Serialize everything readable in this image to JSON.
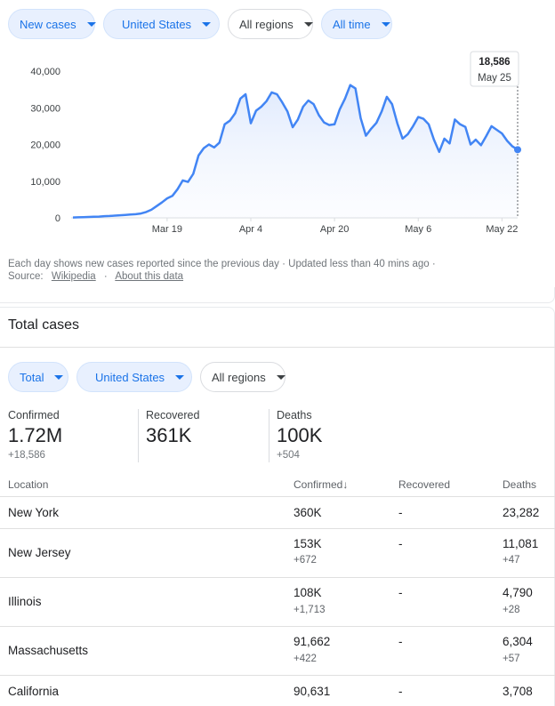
{
  "filters_top": {
    "metric": "New cases",
    "country": "United States",
    "regions": "All regions",
    "time": "All time"
  },
  "chart_data": {
    "type": "area",
    "y_ticks": [
      "40,000",
      "30,000",
      "20,000",
      "10,000",
      "0"
    ],
    "x_ticks": [
      "Mar 19",
      "Apr 4",
      "Apr 20",
      "May 6",
      "May 22"
    ],
    "ylim": [
      0,
      40000
    ],
    "start_date": "2020-03-01",
    "x_dates": [
      "Mar 1",
      "Mar 2",
      "Mar 3",
      "Mar 4",
      "Mar 5",
      "Mar 6",
      "Mar 7",
      "Mar 8",
      "Mar 9",
      "Mar 10",
      "Mar 11",
      "Mar 12",
      "Mar 13",
      "Mar 14",
      "Mar 15",
      "Mar 16",
      "Mar 17",
      "Mar 18",
      "Mar 19",
      "Mar 20",
      "Mar 21",
      "Mar 22",
      "Mar 23",
      "Mar 24",
      "Mar 25",
      "Mar 26",
      "Mar 27",
      "Mar 28",
      "Mar 29",
      "Mar 30",
      "Mar 31",
      "Apr 1",
      "Apr 2",
      "Apr 3",
      "Apr 4",
      "Apr 5",
      "Apr 6",
      "Apr 7",
      "Apr 8",
      "Apr 9",
      "Apr 10",
      "Apr 11",
      "Apr 12",
      "Apr 13",
      "Apr 14",
      "Apr 15",
      "Apr 16",
      "Apr 17",
      "Apr 18",
      "Apr 19",
      "Apr 20",
      "Apr 21",
      "Apr 22",
      "Apr 23",
      "Apr 24",
      "Apr 25",
      "Apr 26",
      "Apr 27",
      "Apr 28",
      "Apr 29",
      "Apr 30",
      "May 1",
      "May 2",
      "May 3",
      "May 4",
      "May 5",
      "May 6",
      "May 7",
      "May 8",
      "May 9",
      "May 10",
      "May 11",
      "May 12",
      "May 13",
      "May 14",
      "May 15",
      "May 16",
      "May 17",
      "May 18",
      "May 19",
      "May 20",
      "May 21",
      "May 22",
      "May 23",
      "May 24",
      "May 25"
    ],
    "values": [
      100,
      150,
      200,
      250,
      300,
      350,
      450,
      500,
      600,
      700,
      800,
      900,
      1000,
      1200,
      1600,
      2200,
      3200,
      4200,
      5300,
      6000,
      7800,
      10200,
      9800,
      12000,
      17000,
      19000,
      20000,
      19200,
      20500,
      25500,
      26500,
      28500,
      32500,
      33700,
      25800,
      29200,
      30300,
      31800,
      34200,
      33700,
      31500,
      29000,
      24700,
      26800,
      30300,
      32000,
      31000,
      28000,
      26000,
      25300,
      25500,
      29600,
      32500,
      36200,
      35300,
      27200,
      22400,
      24300,
      25900,
      29000,
      33000,
      31000,
      25800,
      21600,
      22800,
      25000,
      27500,
      27000,
      25500,
      21300,
      18000,
      21600,
      20300,
      26800,
      25500,
      24800,
      20000,
      21300,
      19800,
      22300,
      25000,
      24000,
      23000,
      21000,
      19500,
      18586
    ],
    "tooltip": {
      "value": "18,586",
      "date": "May 25"
    },
    "color": "#4285f4"
  },
  "footnote": {
    "text": "Each day shows new cases reported since the previous day · Updated less than 40 mins ago ·",
    "source_label": "Source:",
    "source_link": "Wikipedia",
    "dot": "·",
    "about_link": "About this data"
  },
  "total_cases": {
    "title": "Total cases",
    "filters": {
      "metric": "Total",
      "country": "United States",
      "regions": "All regions"
    },
    "stats": {
      "confirmed": {
        "label": "Confirmed",
        "value": "1.72M",
        "delta": "+18,586"
      },
      "recovered": {
        "label": "Recovered",
        "value": "361K"
      },
      "deaths": {
        "label": "Deaths",
        "value": "100K",
        "delta": "+504"
      }
    },
    "table": {
      "headers": {
        "location": "Location",
        "confirmed": "Confirmed",
        "sort_arrow": "↓",
        "recovered": "Recovered",
        "deaths": "Deaths"
      },
      "rows": [
        {
          "location": "New York",
          "confirmed": "360K",
          "confirmed_delta": "",
          "recovered": "-",
          "deaths": "23,282",
          "deaths_delta": ""
        },
        {
          "location": "New Jersey",
          "confirmed": "153K",
          "confirmed_delta": "+672",
          "recovered": "-",
          "deaths": "11,081",
          "deaths_delta": "+47"
        },
        {
          "location": "Illinois",
          "confirmed": "108K",
          "confirmed_delta": "+1,713",
          "recovered": "-",
          "deaths": "4,790",
          "deaths_delta": "+28"
        },
        {
          "location": "Massachusetts",
          "confirmed": "91,662",
          "confirmed_delta": "+422",
          "recovered": "-",
          "deaths": "6,304",
          "deaths_delta": "+57"
        },
        {
          "location": "California",
          "confirmed": "90,631",
          "confirmed_delta": "",
          "recovered": "-",
          "deaths": "3,708",
          "deaths_delta": ""
        }
      ]
    }
  }
}
